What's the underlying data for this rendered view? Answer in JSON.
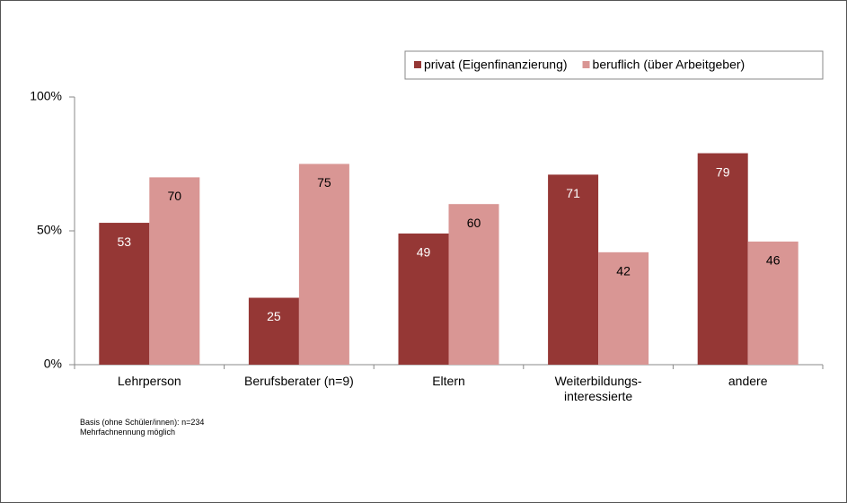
{
  "chart_data": {
    "type": "bar",
    "categories": [
      "Lehrperson",
      "Berufsberater (n=9)",
      "Eltern",
      "Weiterbildungs-\ninteressierte",
      "andere"
    ],
    "series": [
      {
        "name": "privat (Eigenfinanzierung)",
        "color": "#953735",
        "label_color": "#ffffff",
        "values": [
          53,
          25,
          49,
          71,
          79
        ]
      },
      {
        "name": "beruflich (über Arbeitgeber)",
        "color": "#d99694",
        "label_color": "#000000",
        "values": [
          70,
          75,
          60,
          42,
          46
        ]
      }
    ],
    "ylim": [
      0,
      100
    ],
    "yticks": [
      {
        "value": 0,
        "label": "0%"
      },
      {
        "value": 50,
        "label": "50%"
      },
      {
        "value": 100,
        "label": "100%"
      }
    ],
    "grid": false,
    "legend": "top-right",
    "notes": [
      "Basis (ohne Schüler/innen): n=234",
      "Mehrfachnennung möglich"
    ]
  }
}
